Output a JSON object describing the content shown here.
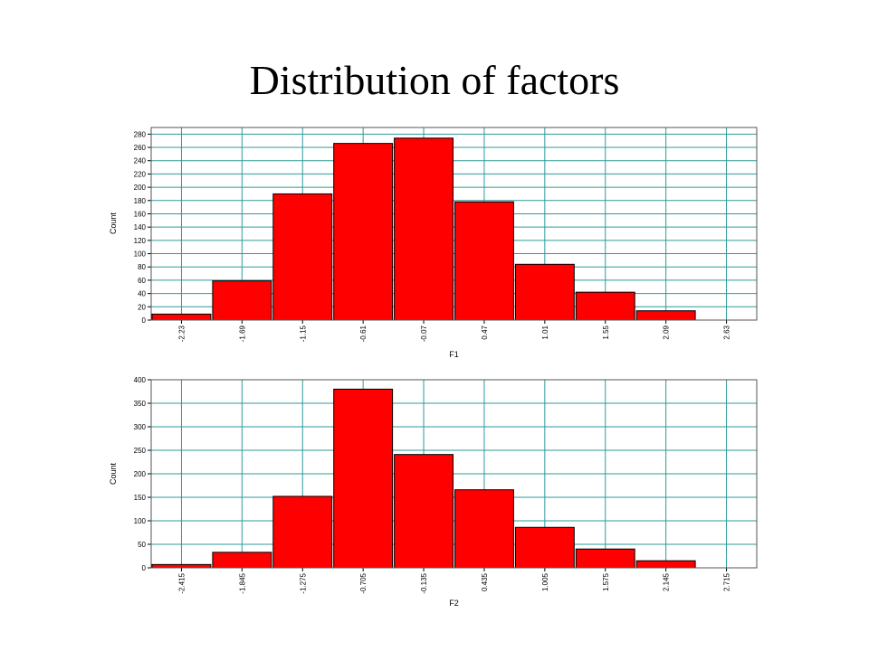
{
  "title": "Distribution of factors",
  "chart_data": [
    {
      "type": "bar",
      "title": "",
      "xlabel": "F1",
      "ylabel": "Count",
      "ylim": [
        0,
        290
      ],
      "yticks": [
        0,
        20,
        40,
        60,
        80,
        100,
        120,
        140,
        160,
        180,
        200,
        220,
        240,
        260,
        280
      ],
      "categories": [
        "-2.23",
        "-1.69",
        "-1.15",
        "-0.61",
        "-0.07",
        "0.47",
        "1.01",
        "1.55",
        "2.09",
        "2.63"
      ],
      "values": [
        9,
        59,
        190,
        266,
        274,
        178,
        84,
        42,
        14,
        0
      ],
      "grid": true,
      "bar_color": "#ff0000",
      "grid_color": "#2e9a9a"
    },
    {
      "type": "bar",
      "title": "",
      "xlabel": "F2",
      "ylabel": "Count",
      "ylim": [
        0,
        400
      ],
      "yticks": [
        0,
        50,
        100,
        150,
        200,
        250,
        300,
        350,
        400
      ],
      "categories": [
        "-2.415",
        "-1.845",
        "-1.275",
        "-0.705",
        "-0.135",
        "0.435",
        "1.005",
        "1.575",
        "2.145",
        "2.715"
      ],
      "values": [
        7,
        33,
        152,
        380,
        241,
        166,
        86,
        40,
        15,
        0
      ],
      "grid": true,
      "bar_color": "#ff0000",
      "grid_color": "#2e9a9a"
    }
  ]
}
